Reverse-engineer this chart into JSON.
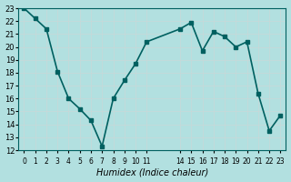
{
  "x": [
    0,
    1,
    2,
    3,
    4,
    5,
    6,
    7,
    8,
    9,
    10,
    11,
    14,
    15,
    16,
    17,
    18,
    19,
    20,
    21,
    22,
    23
  ],
  "y": [
    23.0,
    22.2,
    21.4,
    18.1,
    16.0,
    15.2,
    14.3,
    12.3,
    16.0,
    17.4,
    18.7,
    20.4,
    21.4,
    21.9,
    19.7,
    21.2,
    20.8,
    20.0,
    20.4,
    16.4,
    13.5,
    14.7
  ],
  "color": "#006060",
  "bg_color": "#b2e0e0",
  "grid_color": "#c8d8d8",
  "xlabel": "Humidex (Indice chaleur)",
  "ylim": [
    12,
    23
  ],
  "yticks": [
    12,
    13,
    14,
    15,
    16,
    17,
    18,
    19,
    20,
    21,
    22,
    23
  ],
  "xtick_positions": [
    0,
    1,
    2,
    3,
    4,
    5,
    6,
    7,
    8,
    9,
    10,
    11,
    14,
    15,
    16,
    17,
    18,
    19,
    20,
    21,
    22,
    23
  ],
  "xtick_labels": [
    "0",
    "1",
    "2",
    "3",
    "4",
    "5",
    "6",
    "7",
    "8",
    "9",
    "10",
    "11",
    "14",
    "15",
    "16",
    "17",
    "18",
    "19",
    "20",
    "21",
    "22",
    "23"
  ],
  "marker_size": 3,
  "line_width": 1.2
}
